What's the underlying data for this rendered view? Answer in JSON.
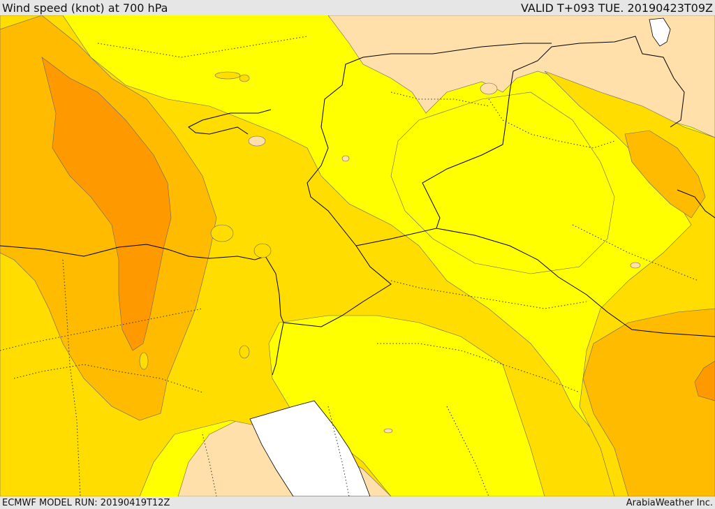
{
  "header": {
    "title": "Wind speed (knot) at 700 hPa",
    "valid": "VALID T+093 TUE. 20190423T09Z"
  },
  "footer": {
    "model_run": "ECMWF MODEL RUN: 20190419T12Z",
    "credit": "ArabiaWeather Inc."
  },
  "colors": {
    "band_lightest": "#ffe0aa",
    "band_light": "#ffff00",
    "band_mid": "#ffdd00",
    "band_strong": "#ffbb00",
    "band_strongest": "#ff9900",
    "sea": "#ffffff",
    "boundary": "#000000"
  }
}
